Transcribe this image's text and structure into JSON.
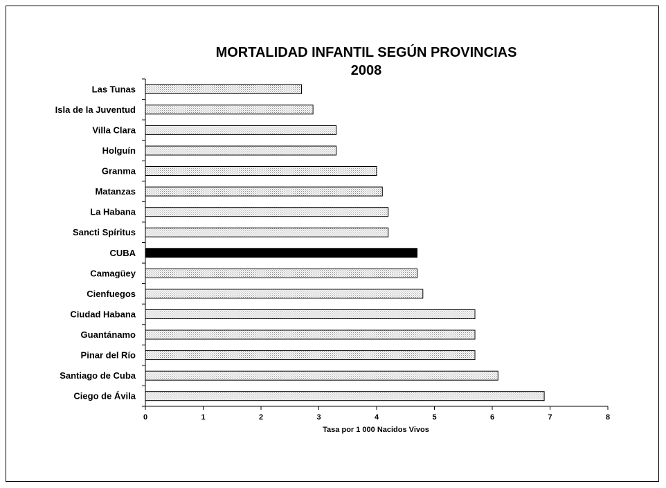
{
  "chart_data": {
    "type": "bar",
    "orientation": "horizontal",
    "title": "MORTALIDAD INFANTIL SEGÚN PROVINCIAS",
    "subtitle": "2008",
    "xlabel": "Tasa por 1 000 Nacidos Vivos",
    "ylabel": "",
    "xlim": [
      0,
      8
    ],
    "xticks": [
      "0",
      "1",
      "2",
      "3",
      "4",
      "5",
      "6",
      "7",
      "8"
    ],
    "grid": false,
    "legend": "none",
    "categories": [
      "Las Tunas",
      "Isla de la Juventud",
      "Villa Clara",
      "Holguín",
      "Granma",
      "Matanzas",
      "La Habana",
      "Sancti Spíritus",
      "CUBA",
      "Camagüey",
      "Cienfuegos",
      "Ciudad Habana",
      "Guantánamo",
      "Pinar del Río",
      "Santiago de Cuba",
      "Ciego de Ávila"
    ],
    "values": [
      2.7,
      2.9,
      3.3,
      3.3,
      4.0,
      4.1,
      4.2,
      4.2,
      4.7,
      4.7,
      4.8,
      5.7,
      5.7,
      5.7,
      6.1,
      6.9
    ],
    "highlight_category": "CUBA",
    "colors": {
      "bar_pattern": "#9a9a9a",
      "bar_fill": "#ffffff",
      "highlight": "#000000",
      "outline": "#000000"
    }
  }
}
